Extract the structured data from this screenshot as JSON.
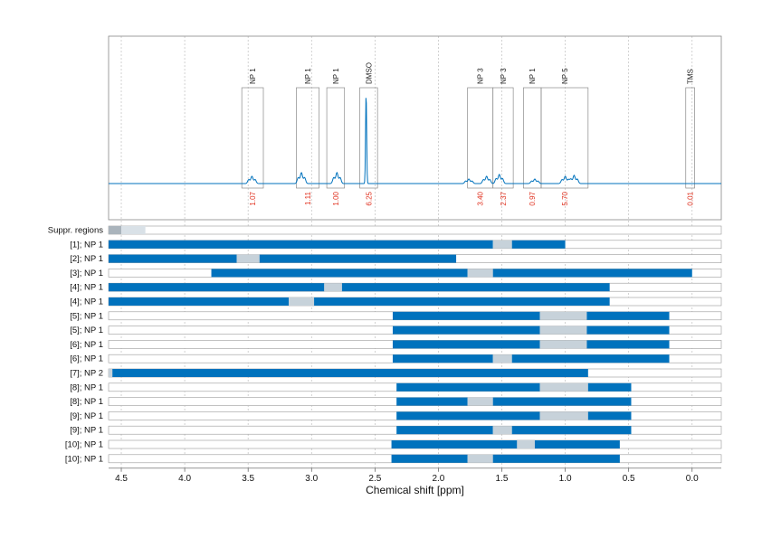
{
  "colors": {
    "accent": "#0072BD",
    "excluded": "#c7d2da",
    "integral_text": "#e0301e",
    "frame": "#888888",
    "grid": "#bfbfbf"
  },
  "chart_data": {
    "type": "nmr_spectrum_with_region_bars",
    "xlabel": "Chemical shift [ppm]",
    "xlim": [
      4.6,
      -0.23
    ],
    "x_reversed": true,
    "x_ticks": [
      4.5,
      4.0,
      3.5,
      3.0,
      2.5,
      2.0,
      1.5,
      1.0,
      0.5,
      0.0
    ],
    "grid": "vertical dotted",
    "spectrum_peaks": [
      {
        "ppm": 3.47,
        "height": 0.08
      },
      {
        "ppm": 3.08,
        "height": 0.12
      },
      {
        "ppm": 2.8,
        "height": 0.12
      },
      {
        "ppm": 2.57,
        "height": 1.0
      },
      {
        "ppm": 1.76,
        "height": 0.05
      },
      {
        "ppm": 1.62,
        "height": 0.08
      },
      {
        "ppm": 1.52,
        "height": 0.1
      },
      {
        "ppm": 1.24,
        "height": 0.05
      },
      {
        "ppm": 1.0,
        "height": 0.08
      },
      {
        "ppm": 0.93,
        "height": 0.09
      }
    ],
    "peak_regions": [
      {
        "label": "NP 1",
        "integral": "1.07",
        "from": 3.55,
        "to": 3.38
      },
      {
        "label": "NP 1",
        "integral": "1.11",
        "from": 3.12,
        "to": 2.94
      },
      {
        "label": "NP 1",
        "integral": "1.00",
        "from": 2.88,
        "to": 2.74
      },
      {
        "label": "DMSO",
        "integral": "6.25",
        "from": 2.62,
        "to": 2.48
      },
      {
        "label": "NP 3",
        "integral": "3.40",
        "from": 1.77,
        "to": 1.57
      },
      {
        "label": "NP 3",
        "integral": "2.37",
        "from": 1.57,
        "to": 1.41
      },
      {
        "label": "NP 1",
        "integral": "0.97",
        "from": 1.33,
        "to": 1.19
      },
      {
        "label": "NP 5",
        "integral": "5.70",
        "from": 1.19,
        "to": 0.82
      },
      {
        "label": "TMS",
        "integral": "0.01",
        "from": 0.05,
        "to": -0.02
      }
    ],
    "rows": [
      {
        "label": "Suppr. regions",
        "segments": [
          {
            "from": 4.6,
            "to": 4.5,
            "kind": "excluded"
          },
          {
            "from": 4.5,
            "to": 4.31,
            "kind": "light"
          }
        ]
      },
      {
        "label": "[1]; NP 1",
        "segments": [
          {
            "from": 4.6,
            "to": 1.57,
            "kind": "fit"
          },
          {
            "from": 1.57,
            "to": 1.42,
            "kind": "excluded"
          },
          {
            "from": 1.42,
            "to": 1.0,
            "kind": "fit"
          }
        ]
      },
      {
        "label": "[2]; NP 1",
        "segments": [
          {
            "from": 4.6,
            "to": 3.59,
            "kind": "fit"
          },
          {
            "from": 3.59,
            "to": 3.41,
            "kind": "excluded"
          },
          {
            "from": 3.41,
            "to": 1.86,
            "kind": "fit"
          }
        ]
      },
      {
        "label": "[3]; NP 1",
        "segments": [
          {
            "from": 3.79,
            "to": 1.77,
            "kind": "fit"
          },
          {
            "from": 1.77,
            "to": 1.57,
            "kind": "excluded"
          },
          {
            "from": 1.57,
            "to": 0.0,
            "kind": "fit"
          }
        ]
      },
      {
        "label": "[4]; NP 1",
        "segments": [
          {
            "from": 4.6,
            "to": 2.9,
            "kind": "fit"
          },
          {
            "from": 2.9,
            "to": 2.76,
            "kind": "excluded"
          },
          {
            "from": 2.76,
            "to": 0.65,
            "kind": "fit"
          }
        ]
      },
      {
        "label": "[4]; NP 1",
        "segments": [
          {
            "from": 4.6,
            "to": 3.18,
            "kind": "fit"
          },
          {
            "from": 3.18,
            "to": 2.98,
            "kind": "excluded"
          },
          {
            "from": 2.98,
            "to": 0.65,
            "kind": "fit"
          }
        ]
      },
      {
        "label": "[5]; NP 1",
        "segments": [
          {
            "from": 2.36,
            "to": 1.2,
            "kind": "fit"
          },
          {
            "from": 1.2,
            "to": 0.83,
            "kind": "excluded"
          },
          {
            "from": 0.83,
            "to": 0.18,
            "kind": "fit"
          }
        ]
      },
      {
        "label": "[5]; NP 1",
        "segments": [
          {
            "from": 2.36,
            "to": 1.2,
            "kind": "fit"
          },
          {
            "from": 1.2,
            "to": 0.83,
            "kind": "excluded"
          },
          {
            "from": 0.83,
            "to": 0.18,
            "kind": "fit"
          }
        ]
      },
      {
        "label": "[6]; NP 1",
        "segments": [
          {
            "from": 2.36,
            "to": 1.2,
            "kind": "fit"
          },
          {
            "from": 1.2,
            "to": 0.83,
            "kind": "excluded"
          },
          {
            "from": 0.83,
            "to": 0.18,
            "kind": "fit"
          }
        ]
      },
      {
        "label": "[6]; NP 1",
        "segments": [
          {
            "from": 2.36,
            "to": 1.57,
            "kind": "fit"
          },
          {
            "from": 1.57,
            "to": 1.42,
            "kind": "excluded"
          },
          {
            "from": 1.42,
            "to": 0.18,
            "kind": "fit"
          }
        ]
      },
      {
        "label": "[7]; NP 2",
        "segments": [
          {
            "from": 4.6,
            "to": 4.57,
            "kind": "excluded"
          },
          {
            "from": 4.57,
            "to": 0.82,
            "kind": "fit"
          }
        ]
      },
      {
        "label": "[8]; NP 1",
        "segments": [
          {
            "from": 2.33,
            "to": 1.2,
            "kind": "fit"
          },
          {
            "from": 1.2,
            "to": 0.82,
            "kind": "excluded"
          },
          {
            "from": 0.82,
            "to": 0.48,
            "kind": "fit"
          }
        ]
      },
      {
        "label": "[8]; NP 1",
        "segments": [
          {
            "from": 2.33,
            "to": 1.77,
            "kind": "fit"
          },
          {
            "from": 1.77,
            "to": 1.57,
            "kind": "excluded"
          },
          {
            "from": 1.57,
            "to": 0.48,
            "kind": "fit"
          }
        ]
      },
      {
        "label": "[9]; NP 1",
        "segments": [
          {
            "from": 2.33,
            "to": 1.2,
            "kind": "fit"
          },
          {
            "from": 1.2,
            "to": 0.82,
            "kind": "excluded"
          },
          {
            "from": 0.82,
            "to": 0.48,
            "kind": "fit"
          }
        ]
      },
      {
        "label": "[9]; NP 1",
        "segments": [
          {
            "from": 2.33,
            "to": 1.57,
            "kind": "fit"
          },
          {
            "from": 1.57,
            "to": 1.42,
            "kind": "excluded"
          },
          {
            "from": 1.42,
            "to": 0.48,
            "kind": "fit"
          }
        ]
      },
      {
        "label": "[10]; NP 1",
        "segments": [
          {
            "from": 2.37,
            "to": 1.38,
            "kind": "fit"
          },
          {
            "from": 1.38,
            "to": 1.24,
            "kind": "excluded"
          },
          {
            "from": 1.24,
            "to": 0.57,
            "kind": "fit"
          }
        ]
      },
      {
        "label": "[10]; NP 1",
        "segments": [
          {
            "from": 2.37,
            "to": 1.77,
            "kind": "fit"
          },
          {
            "from": 1.77,
            "to": 1.57,
            "kind": "excluded"
          },
          {
            "from": 1.57,
            "to": 0.57,
            "kind": "fit"
          }
        ]
      }
    ]
  }
}
